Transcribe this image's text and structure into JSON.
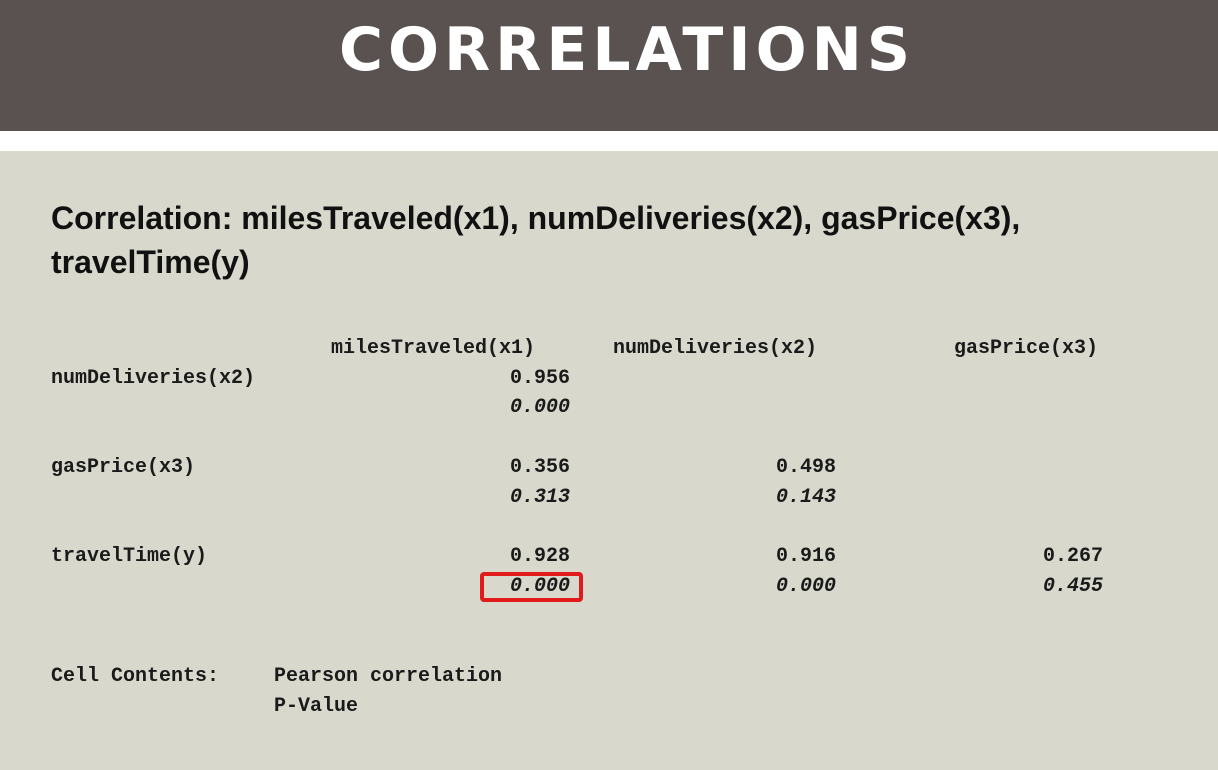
{
  "slide": {
    "title": "CORRELATIONS",
    "heading": "Correlation: milesTraveled(x1), numDeliveries(x2), gasPrice(x3), travelTime(y)"
  },
  "table": {
    "columns": [
      "milesTraveled(x1)",
      "numDeliveries(x2)",
      "gasPrice(x3)"
    ],
    "rows": [
      {
        "label": "numDeliveries(x2)",
        "r": [
          "0.956"
        ],
        "p": [
          "0.000"
        ]
      },
      {
        "label": "gasPrice(x3)",
        "r": [
          "0.356",
          "0.498"
        ],
        "p": [
          "0.313",
          "0.143"
        ]
      },
      {
        "label": "travelTime(y)",
        "r": [
          "0.928",
          "0.916",
          "0.267"
        ],
        "p": [
          "0.000",
          "0.000",
          "0.455"
        ]
      }
    ]
  },
  "legend": {
    "label": "Cell Contents:",
    "line1": "Pearson correlation",
    "line2": "P-Value"
  },
  "highlight": {
    "color": "#e11b1b"
  }
}
